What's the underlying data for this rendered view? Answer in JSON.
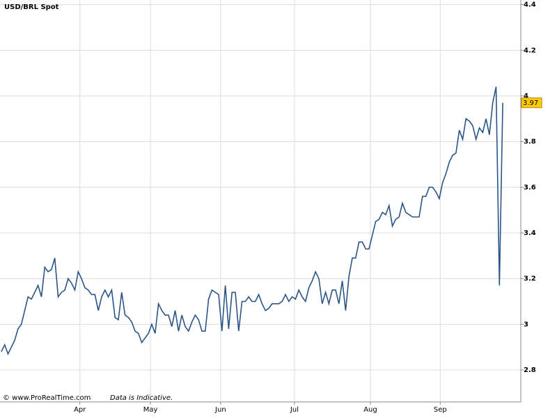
{
  "chart_data": {
    "type": "line",
    "title": "USD/BRL Spot",
    "source": "© www.ProRealTime.com",
    "note": "Data is Indicative.",
    "color": "#2a5585",
    "values": [
      2.88,
      2.91,
      2.87,
      2.9,
      2.93,
      2.98,
      3.0,
      3.06,
      3.12,
      3.11,
      3.14,
      3.17,
      3.12,
      3.25,
      3.23,
      3.24,
      3.29,
      3.12,
      3.14,
      3.15,
      3.2,
      3.18,
      3.15,
      3.23,
      3.2,
      3.16,
      3.15,
      3.13,
      3.13,
      3.06,
      3.12,
      3.15,
      3.12,
      3.15,
      3.03,
      3.02,
      3.14,
      3.04,
      3.03,
      3.01,
      2.97,
      2.96,
      2.92,
      2.94,
      2.96,
      3.0,
      2.96,
      3.09,
      3.06,
      3.04,
      3.04,
      2.99,
      3.06,
      2.97,
      3.04,
      2.99,
      2.97,
      3.01,
      3.04,
      3.02,
      2.97,
      2.97,
      3.11,
      3.15,
      3.14,
      3.13,
      2.97,
      3.17,
      2.98,
      3.14,
      3.14,
      2.97,
      3.1,
      3.1,
      3.12,
      3.1,
      3.1,
      3.13,
      3.09,
      3.06,
      3.07,
      3.09,
      3.09,
      3.09,
      3.1,
      3.13,
      3.1,
      3.12,
      3.11,
      3.15,
      3.12,
      3.1,
      3.16,
      3.19,
      3.23,
      3.2,
      3.09,
      3.14,
      3.09,
      3.15,
      3.15,
      3.09,
      3.19,
      3.06,
      3.21,
      3.29,
      3.29,
      3.36,
      3.36,
      3.33,
      3.33,
      3.39,
      3.45,
      3.46,
      3.49,
      3.48,
      3.52,
      3.43,
      3.46,
      3.47,
      3.53,
      3.49,
      3.48,
      3.47,
      3.47,
      3.47,
      3.56,
      3.56,
      3.6,
      3.6,
      3.58,
      3.55,
      3.62,
      3.66,
      3.71,
      3.74,
      3.75,
      3.85,
      3.81,
      3.9,
      3.89,
      3.87,
      3.81,
      3.86,
      3.84,
      3.9,
      3.83,
      3.97,
      4.04,
      3.17,
      3.97
    ],
    "xlim": [
      -0.4,
      155.4
    ],
    "xticks": [
      {
        "value": 23.5,
        "label": "Apr"
      },
      {
        "value": 44.6,
        "label": "May"
      },
      {
        "value": 65.6,
        "label": "Jun"
      },
      {
        "value": 87.7,
        "label": "Jul"
      },
      {
        "value": 110.4,
        "label": "Aug"
      },
      {
        "value": 131.3,
        "label": "Sep"
      }
    ],
    "ylim": [
      2.66,
      4.42
    ],
    "yticks": [
      2.8,
      3,
      3.2,
      3.4,
      3.6,
      3.8,
      4,
      4.2,
      4.4
    ],
    "grid": true
  }
}
